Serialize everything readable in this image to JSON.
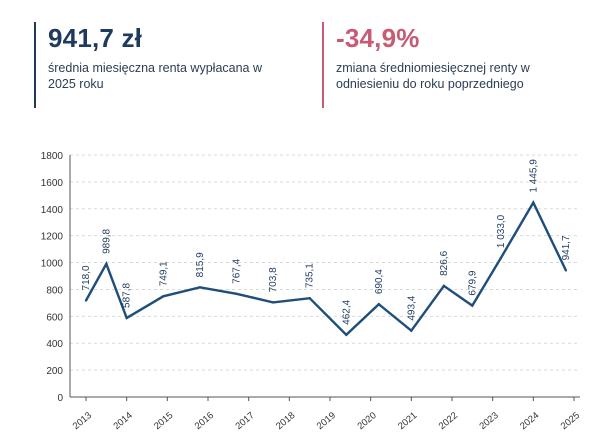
{
  "kpis": [
    {
      "value": "941,7 zł",
      "description": "średnia miesięczna renta wypłacana w 2025 roku",
      "color": "#1f3a5f"
    },
    {
      "value": "-34,9%",
      "description": "zmiana średniomiesięcznej renty w odniesieniu do roku poprzedniego",
      "color": "#c75b73"
    }
  ],
  "chart_data": {
    "type": "line",
    "categories": [
      "2013",
      "2014",
      "2015",
      "2016",
      "2017",
      "2018",
      "2019",
      "2020",
      "2021",
      "2022",
      "2023",
      "2024",
      "2025"
    ],
    "series": [
      {
        "values": [
          718.0,
          989.8,
          587.8,
          749.1,
          815.9,
          767.4,
          703.8,
          735.1,
          462.4,
          690.4,
          493.4,
          826.6,
          679.9,
          1033.0,
          1445.9,
          941.7
        ]
      }
    ],
    "x": [
      2013.0,
      2013.5,
      2014.0,
      2014.9,
      2015.8,
      2016.7,
      2017.6,
      2018.5,
      2019.4,
      2020.2,
      2021.0,
      2021.8,
      2022.5,
      2023.2,
      2024.0,
      2024.8
    ],
    "data_labels": [
      "718,0",
      "989,8",
      "587,8",
      "749,1",
      "815,9",
      "767,4",
      "703,8",
      "735,1",
      "462,4",
      "690,4",
      "493,4",
      "826,6",
      "679,9",
      "1 033,0",
      "1 445,9",
      "941,7"
    ],
    "yticks": [
      0,
      200,
      400,
      600,
      800,
      1000,
      1200,
      1400,
      1600,
      1800
    ],
    "ylim": [
      0,
      1800
    ],
    "grid": true,
    "line_color": "#1f4e7a",
    "title": "",
    "xlabel": "",
    "ylabel": ""
  }
}
